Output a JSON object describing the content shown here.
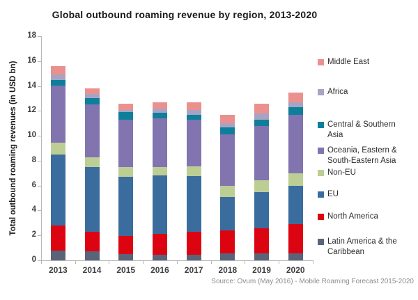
{
  "title": "Global outbound roaming revenue by region, 2013-2020",
  "source_note": "Source: Ovum (May 2016) - Mobile Roaming Forecast 2015-2020",
  "chart_data": {
    "type": "bar",
    "stacked": true,
    "title": "Global outbound roaming revenue by region, 2013-2020",
    "xlabel": "",
    "ylabel": "Total outbound roaming revenues (in USD bn)",
    "ylim": [
      0,
      18
    ],
    "ytick_step": 2,
    "grid": false,
    "legend_position": "right",
    "categories": [
      "2013",
      "2014",
      "2015",
      "2016",
      "2017",
      "2018",
      "2019",
      "2020"
    ],
    "series": [
      {
        "name": "Latin America & the Caribbean",
        "legend_lines": "Latin America & the\nCaribbean",
        "color": "#5a6478",
        "values": [
          0.8,
          0.7,
          0.5,
          0.45,
          0.45,
          0.55,
          0.55,
          0.55
        ]
      },
      {
        "name": "North America",
        "legend_lines": "North America",
        "color": "#dd0411",
        "values": [
          2.0,
          1.6,
          1.45,
          1.65,
          1.85,
          1.85,
          2.0,
          2.35
        ]
      },
      {
        "name": "EU",
        "legend_lines": "EU",
        "color": "#3a6d9e",
        "values": [
          5.7,
          5.2,
          4.75,
          4.7,
          4.45,
          2.7,
          2.95,
          3.1
        ]
      },
      {
        "name": "Non-EU",
        "legend_lines": "Non-EU",
        "color": "#bdce95",
        "values": [
          0.95,
          0.75,
          0.8,
          0.7,
          0.8,
          0.9,
          0.95,
          1.0
        ]
      },
      {
        "name": "Oceania, Eastern & South-Eastern Asia",
        "legend_lines": "Oceania, Eastern &\nSouth-Eastern Asia",
        "color": "#8174af",
        "values": [
          4.6,
          4.25,
          3.8,
          3.9,
          3.75,
          4.1,
          4.35,
          4.7
        ]
      },
      {
        "name": "Central & Southern Asia",
        "legend_lines": "Central & Southern\nAsia",
        "color": "#0e7f9a",
        "values": [
          0.45,
          0.55,
          0.6,
          0.45,
          0.4,
          0.55,
          0.5,
          0.6
        ]
      },
      {
        "name": "Africa",
        "legend_lines": "Africa",
        "color": "#a9a3c3",
        "values": [
          0.4,
          0.3,
          0.2,
          0.35,
          0.4,
          0.35,
          0.5,
          0.4
        ]
      },
      {
        "name": "Middle East",
        "legend_lines": "Middle East",
        "color": "#ea918f",
        "values": [
          0.7,
          0.45,
          0.5,
          0.5,
          0.6,
          0.7,
          0.75,
          0.8
        ]
      }
    ],
    "totals": [
      15.6,
      13.8,
      12.6,
      12.7,
      12.7,
      11.7,
      12.55,
      13.5
    ]
  }
}
